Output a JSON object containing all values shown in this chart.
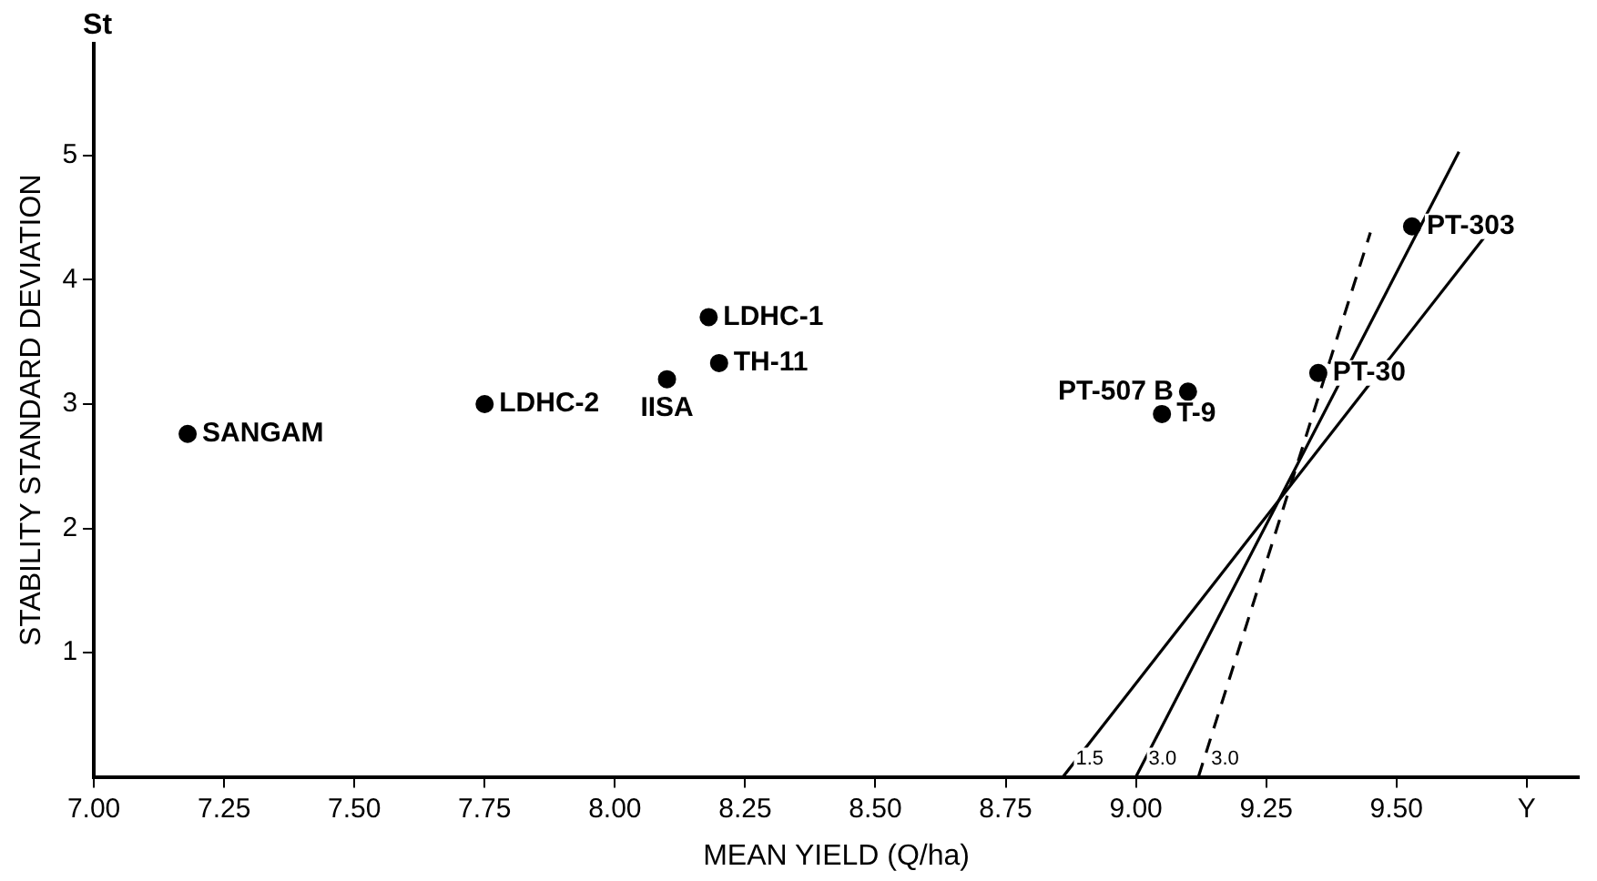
{
  "chart_data": {
    "type": "scatter",
    "xlabel": "MEAN YIELD (Q/ha)",
    "ylabel": "STABILITY STANDARD DEVIATION",
    "xlim": [
      7.0,
      9.85
    ],
    "xticks": [
      {
        "value": 7,
        "label": "7.00"
      },
      7.25,
      {
        "value": 7.5,
        "label": "7.50"
      },
      7.75,
      {
        "value": 8,
        "label": "8.00"
      },
      8.25,
      {
        "value": 8.5,
        "label": "8.50"
      },
      8.75,
      {
        "value": 9,
        "label": "9.00"
      },
      9.25,
      {
        "value": 9.5,
        "label": "9.50"
      },
      {
        "value": 9.75,
        "label": "Y"
      }
    ],
    "ylim": [
      0,
      5.9
    ],
    "yticks": [
      1,
      2,
      3,
      4,
      5
    ],
    "grid": false,
    "legend": false,
    "marker": "circle",
    "series": [
      {
        "name": "SANGAM",
        "color": "#000000",
        "x": [
          7.18
        ],
        "values": [
          2.76
        ]
      },
      {
        "name": "LDHC-2",
        "color": "#000000",
        "x": [
          7.75
        ],
        "values": [
          3.0
        ]
      },
      {
        "name": "IISA",
        "color": "#000000",
        "x": [
          8.1
        ],
        "values": [
          3.2
        ]
      },
      {
        "name": "LDHC-1",
        "color": "#000000",
        "x": [
          8.18
        ],
        "values": [
          3.7
        ]
      },
      {
        "name": "TH-11",
        "color": "#000000",
        "x": [
          8.2
        ],
        "values": [
          3.33
        ]
      },
      {
        "name": "PT-507 B",
        "color": "#000000",
        "x": [
          9.1
        ],
        "values": [
          3.1
        ]
      },
      {
        "name": "T-9",
        "color": "#000000",
        "x": [
          9.05
        ],
        "values": [
          2.92
        ]
      },
      {
        "name": "PT-30",
        "color": "#000000",
        "x": [
          9.35
        ],
        "values": [
          3.25
        ]
      },
      {
        "name": "PT-303",
        "color": "#000000",
        "x": [
          9.53
        ],
        "values": [
          4.43
        ]
      },
      {
        "type": "line",
        "color": "#000000",
        "marker": "none",
        "line_style": "solid",
        "x": [
          8.86,
          9.67
        ],
        "values": [
          0,
          4.35
        ]
      },
      {
        "type": "line",
        "color": "#000000",
        "marker": "none",
        "line_style": "solid",
        "x": [
          9.0,
          9.62
        ],
        "values": [
          0,
          5.03
        ]
      },
      {
        "type": "line",
        "color": "#000000",
        "marker": "none",
        "line_style": "dashed",
        "x": [
          9.12,
          9.45
        ],
        "values": [
          0,
          4.38
        ]
      }
    ],
    "annotations": [
      "St",
      "1.5",
      "3.0",
      "3.0"
    ]
  }
}
